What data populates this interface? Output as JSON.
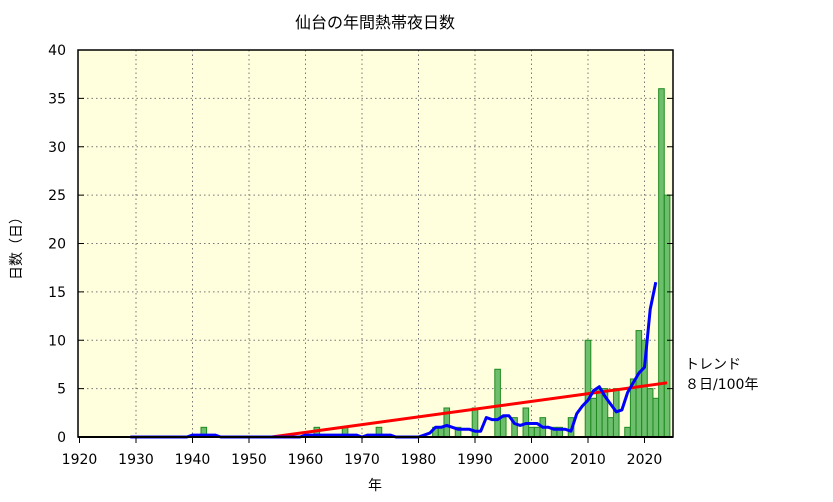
{
  "chart_data": {
    "type": "bar",
    "title": "仙台の年間熱帯夜日数",
    "xlabel": "年",
    "ylabel": "日数（日）",
    "xlim": [
      1920,
      2025
    ],
    "ylim": [
      0,
      40
    ],
    "xticks": [
      1920,
      1930,
      1940,
      1950,
      1960,
      1970,
      1980,
      1990,
      2000,
      2010,
      2020
    ],
    "yticks": [
      0,
      5,
      10,
      15,
      20,
      25,
      30,
      35,
      40
    ],
    "grid": true,
    "background": "#ffffdd",
    "bar_color": "#6dbf6d",
    "bar_edge_color": "#1f8a1f",
    "start_year": 1927,
    "values": [
      0,
      0,
      0,
      0,
      0,
      0,
      0,
      0,
      0,
      0,
      0,
      0,
      0,
      0,
      0,
      1,
      0,
      0,
      0,
      0,
      0,
      0,
      0,
      0,
      0,
      0,
      0,
      0,
      0,
      0,
      0,
      0,
      0,
      0,
      0,
      1,
      0,
      0,
      0,
      0,
      1,
      0,
      0,
      0,
      0,
      0,
      1,
      0,
      0,
      0,
      0,
      0,
      0,
      0,
      0,
      0,
      1,
      1,
      3,
      0,
      1,
      0,
      0,
      3,
      0,
      0,
      0,
      7,
      2,
      0,
      2,
      0,
      3,
      1,
      1,
      2,
      0,
      1,
      1,
      0,
      2,
      0,
      0,
      10,
      4,
      5,
      5,
      2,
      5,
      0,
      1,
      6,
      11,
      10,
      5,
      4,
      36,
      25
    ],
    "moving_average": {
      "window": 5,
      "color": "#0000ff"
    },
    "trend": {
      "color": "#ff0000",
      "slope_per_year": 0.08,
      "zero_year": 1954,
      "end_year": 2024
    },
    "annotation": {
      "line1": "トレンド",
      "line2": "８日/100年"
    }
  }
}
